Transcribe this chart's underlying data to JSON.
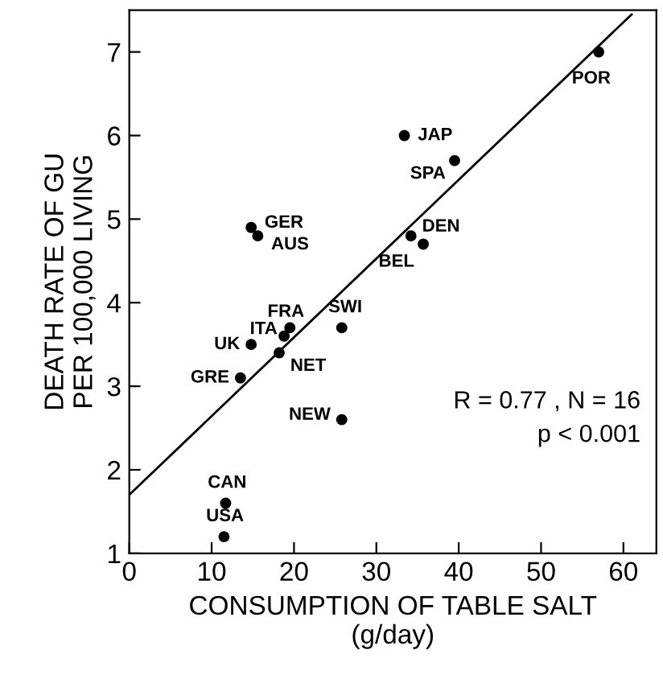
{
  "chart_data": {
    "type": "scatter",
    "xlabel": "CONSUMPTION OF TABLE SALT\n(g/day)",
    "ylabel": "DEATH RATE OF GU\nPER 100,000 LIVING",
    "xlim": [
      0,
      64
    ],
    "ylim": [
      1,
      7.5
    ],
    "xticks": [
      0,
      10,
      20,
      30,
      40,
      50,
      60
    ],
    "yticks": [
      1,
      2,
      3,
      4,
      5,
      6,
      7
    ],
    "grid": false,
    "legend": false,
    "series": [
      {
        "marker": "circle",
        "color": "#000000",
        "x": [
          57,
          33.4,
          39.5,
          14.8,
          15.6,
          34.2,
          35.7,
          19.5,
          25.8,
          18.8,
          14.8,
          18.2,
          13.5,
          25.8,
          11.7,
          11.5
        ],
        "values": [
          7.0,
          6.0,
          5.7,
          4.9,
          4.8,
          4.8,
          4.7,
          3.7,
          3.7,
          3.6,
          3.5,
          3.4,
          3.1,
          2.6,
          1.6,
          1.2
        ]
      },
      {
        "type": "line",
        "marker": "none",
        "color": "#000000",
        "x": [
          0,
          61
        ],
        "values": [
          1.7,
          7.45
        ]
      }
    ],
    "annotations": [
      {
        "text": "POR",
        "x": 57,
        "y": 7.0
      },
      {
        "text": "JAP",
        "x": 33.4,
        "y": 6.0
      },
      {
        "text": "SPA",
        "x": 39.5,
        "y": 5.7
      },
      {
        "text": "GER",
        "x": 14.8,
        "y": 4.9
      },
      {
        "text": "AUS",
        "x": 15.6,
        "y": 4.8
      },
      {
        "text": "DEN",
        "x": 34.2,
        "y": 4.8
      },
      {
        "text": "BEL",
        "x": 35.7,
        "y": 4.7
      },
      {
        "text": "FRA",
        "x": 19.5,
        "y": 3.7
      },
      {
        "text": "SWI",
        "x": 25.8,
        "y": 3.7
      },
      {
        "text": "ITA",
        "x": 18.8,
        "y": 3.6
      },
      {
        "text": "UK",
        "x": 14.8,
        "y": 3.5
      },
      {
        "text": "NET",
        "x": 18.2,
        "y": 3.4
      },
      {
        "text": "GRE",
        "x": 13.5,
        "y": 3.1
      },
      {
        "text": "NEW",
        "x": 25.8,
        "y": 2.6
      },
      {
        "text": "CAN",
        "x": 11.7,
        "y": 1.6
      },
      {
        "text": "USA",
        "x": 11.5,
        "y": 1.2
      },
      "R = 0.77 , N = 16\np < 0.001"
    ]
  }
}
